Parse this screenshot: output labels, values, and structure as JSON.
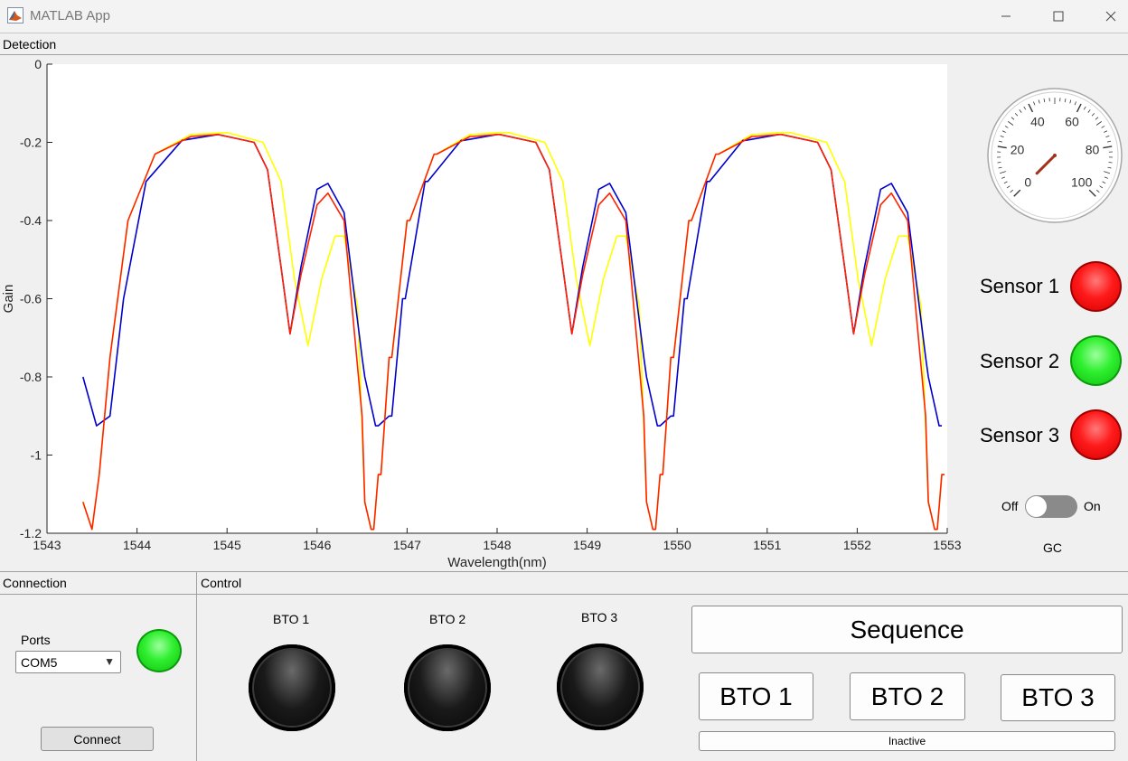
{
  "window": {
    "title": "MATLAB App"
  },
  "detection": {
    "panel_title": "Detection",
    "gauge": {
      "ticks": [
        "0",
        "20",
        "40",
        "60",
        "80",
        "100"
      ],
      "value": 0.0
    },
    "sensors": [
      {
        "label": "Sensor 1",
        "status": "red"
      },
      {
        "label": "Sensor 2",
        "status": "green"
      },
      {
        "label": "Sensor 3",
        "status": "red"
      }
    ],
    "switch": {
      "off_label": "Off",
      "on_label": "On",
      "state": "Off",
      "caption": "GC"
    }
  },
  "chart_data": {
    "type": "line",
    "xlabel": "Wavelength(nm)",
    "ylabel": "Gain",
    "xlim": [
      1543,
      1553
    ],
    "ylim": [
      -1.2,
      0
    ],
    "xticks": [
      "1543",
      "1544",
      "1545",
      "1546",
      "1547",
      "1548",
      "1549",
      "1550",
      "1551",
      "1552",
      "1553"
    ],
    "yticks": [
      "0",
      "-0.2",
      "-0.4",
      "-0.6",
      "-0.8",
      "-1",
      "-1.2"
    ],
    "period": 3.13,
    "series": [
      {
        "color": "#0000cc",
        "points": [
          [
            1543.4,
            -0.8
          ],
          [
            1543.55,
            -0.925
          ],
          [
            1543.7,
            -0.9
          ],
          [
            1543.85,
            -0.6
          ],
          [
            1544.1,
            -0.3
          ],
          [
            1544.5,
            -0.195
          ],
          [
            1544.9,
            -0.18
          ],
          [
            1545.3,
            -0.2
          ],
          [
            1545.45,
            -0.27
          ],
          [
            1545.6,
            -0.52
          ],
          [
            1545.7,
            -0.69
          ],
          [
            1545.82,
            -0.52
          ],
          [
            1546.0,
            -0.32
          ],
          [
            1546.12,
            -0.305
          ],
          [
            1546.3,
            -0.38
          ],
          [
            1546.5,
            -0.75
          ],
          [
            1546.65,
            -0.925
          ],
          [
            1546.8,
            -0.9
          ],
          [
            1546.95,
            -0.6
          ],
          [
            1547.2,
            -0.3
          ],
          [
            1547.6,
            -0.195
          ],
          [
            1548.0,
            -0.18
          ]
        ]
      },
      {
        "color": "#ff2200",
        "points": [
          [
            1543.4,
            -1.12
          ],
          [
            1543.5,
            -1.19
          ],
          [
            1543.58,
            -1.05
          ],
          [
            1543.7,
            -0.75
          ],
          [
            1543.9,
            -0.4
          ],
          [
            1544.2,
            -0.23
          ],
          [
            1544.6,
            -0.185
          ],
          [
            1544.9,
            -0.18
          ],
          [
            1545.3,
            -0.2
          ],
          [
            1545.45,
            -0.27
          ],
          [
            1545.6,
            -0.52
          ],
          [
            1545.7,
            -0.69
          ],
          [
            1545.82,
            -0.54
          ],
          [
            1546.0,
            -0.36
          ],
          [
            1546.12,
            -0.33
          ],
          [
            1546.3,
            -0.4
          ],
          [
            1546.5,
            -0.9
          ],
          [
            1546.6,
            -1.19
          ],
          [
            1546.68,
            -1.05
          ],
          [
            1546.8,
            -0.75
          ],
          [
            1547.0,
            -0.4
          ],
          [
            1547.3,
            -0.23
          ],
          [
            1547.7,
            -0.185
          ],
          [
            1548.0,
            -0.18
          ]
        ]
      },
      {
        "color": "#ffff00",
        "points": [
          [
            1543.4,
            -1.12
          ],
          [
            1543.5,
            -1.19
          ],
          [
            1543.58,
            -1.05
          ],
          [
            1543.7,
            -0.75
          ],
          [
            1543.9,
            -0.4
          ],
          [
            1544.2,
            -0.23
          ],
          [
            1544.6,
            -0.18
          ],
          [
            1545.0,
            -0.175
          ],
          [
            1545.4,
            -0.2
          ],
          [
            1545.6,
            -0.3
          ],
          [
            1545.75,
            -0.55
          ],
          [
            1545.9,
            -0.72
          ],
          [
            1546.05,
            -0.55
          ],
          [
            1546.2,
            -0.44
          ],
          [
            1546.3,
            -0.44
          ],
          [
            1546.45,
            -0.62
          ],
          [
            1546.6,
            -1.19
          ],
          [
            1546.68,
            -1.05
          ],
          [
            1546.8,
            -0.75
          ],
          [
            1547.0,
            -0.4
          ],
          [
            1547.3,
            -0.23
          ],
          [
            1547.7,
            -0.18
          ],
          [
            1548.0,
            -0.175
          ]
        ]
      }
    ]
  },
  "connection": {
    "panel_title": "Connection",
    "ports_label": "Ports",
    "port_value": "COM5",
    "status": "green",
    "connect_label": "Connect"
  },
  "control": {
    "panel_title": "Control",
    "knobs": [
      "BTO 1",
      "BTO 2",
      "BTO 3"
    ],
    "sequence_label": "Sequence",
    "bto_buttons": [
      "BTO 1",
      "BTO 2",
      "BTO 3"
    ],
    "status_text": "Inactive"
  }
}
